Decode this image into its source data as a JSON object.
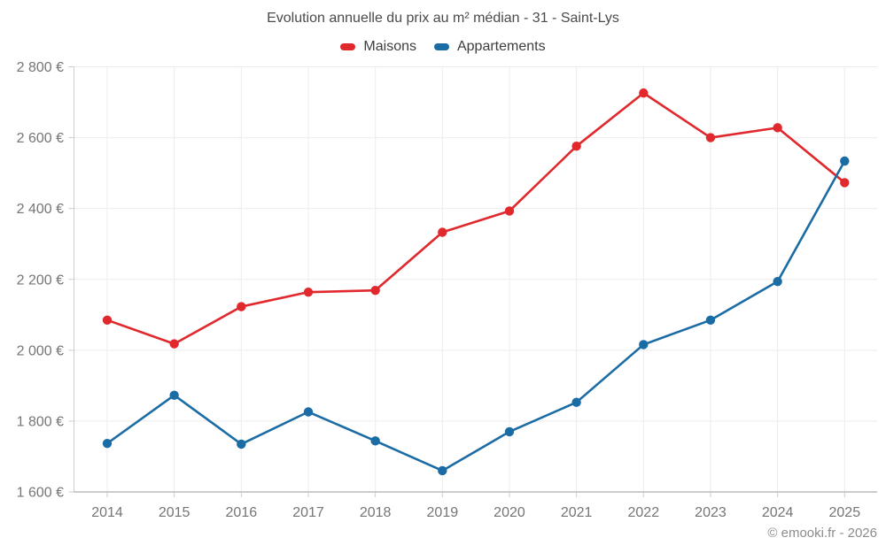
{
  "title": "Evolution annuelle du prix au m² médian - 31 - Saint-Lys",
  "footer": "© emooki.fr - 2026",
  "colors": {
    "maisons": "#e0282d",
    "appartements": "#1b6ca5",
    "grid": "#ececec",
    "y_axis_line": "#cccccc",
    "x_axis_line": "#9a9a9a",
    "tick": "#cccccc",
    "tick_label": "#757575",
    "title_text": "#4a4a4a",
    "legend_text": "#3d3d3d",
    "footer_text": "#8c8c8c"
  },
  "chart_data": {
    "type": "line",
    "title": "Evolution annuelle du prix au m² médian - 31 - Saint-Lys",
    "categories": [
      "2014",
      "2015",
      "2016",
      "2017",
      "2018",
      "2019",
      "2020",
      "2021",
      "2022",
      "2023",
      "2024",
      "2025"
    ],
    "series": [
      {
        "name": "Maisons",
        "color": "#e0282d",
        "values": [
          2085,
          2018,
          2123,
          2164,
          2169,
          2333,
          2393,
          2576,
          2726,
          2600,
          2628,
          2473
        ]
      },
      {
        "name": "Appartements",
        "color": "#1b6ca5",
        "values": [
          1737,
          1873,
          1735,
          1826,
          1744,
          1660,
          1770,
          1853,
          2016,
          2085,
          2194,
          2534
        ]
      }
    ],
    "xlabel": "",
    "ylabel": "",
    "ylim": [
      1600,
      2800
    ],
    "ytick_step": 200,
    "ytick_suffix": " €",
    "grid": true,
    "legend_position": "top"
  }
}
